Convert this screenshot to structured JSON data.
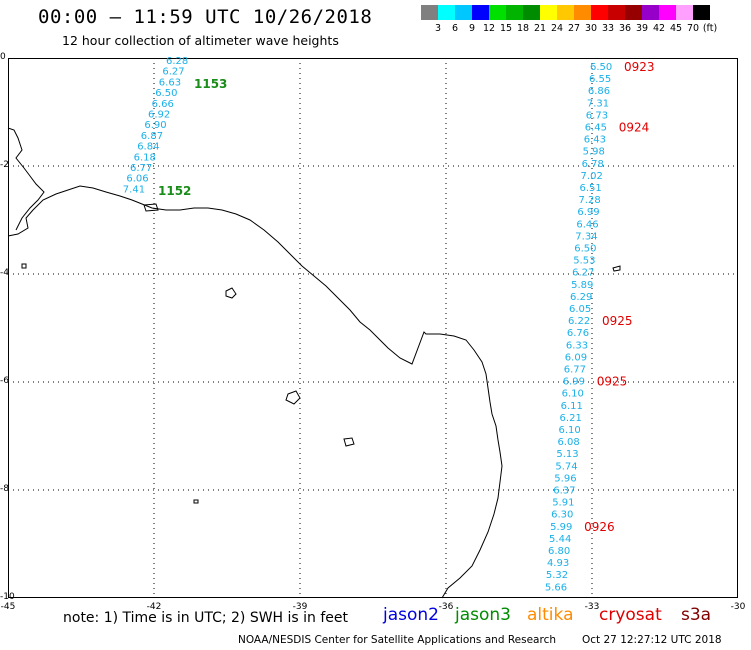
{
  "header": {
    "title": "00:00 – 11:59 UTC 10/26/2018",
    "subtitle": "12 hour collection of altimeter wave heights"
  },
  "scale": {
    "colors": [
      "#808080",
      "#00ffff",
      "#00c8ff",
      "#0000ff",
      "#00e000",
      "#00b400",
      "#008c00",
      "#ffff00",
      "#ffc800",
      "#ff8c00",
      "#ff0000",
      "#c80000",
      "#960000",
      "#9600c8",
      "#ff00ff",
      "#ffa0ff",
      "#000000"
    ],
    "labels": [
      "3",
      "6",
      "9",
      "12",
      "15",
      "18",
      "21",
      "24",
      "27",
      "30",
      "33",
      "36",
      "39",
      "42",
      "45",
      "70",
      "(ft)"
    ]
  },
  "axes": {
    "x_ticks": [
      "-45",
      "-42",
      "-39",
      "-36",
      "-33",
      "-30"
    ],
    "y_ticks": [
      "0",
      "-2",
      "-4",
      "-6",
      "-8",
      "-10"
    ]
  },
  "track_east": {
    "values": [
      "6.50",
      "6.55",
      "6.86",
      "7.31",
      "6.73",
      "6.45",
      "6.43",
      "5.98",
      "6.78",
      "7.02",
      "6.51",
      "7.28",
      "6.99",
      "6.46",
      "7.34",
      "6.50",
      "5.53",
      "6.27",
      "5.89",
      "6.29",
      "6.05",
      "6.22",
      "6.76",
      "6.33",
      "6.09",
      "6.77",
      "6.99",
      "6.10",
      "6.11",
      "6.21",
      "6.10",
      "6.08",
      "5.13",
      "5.74",
      "5.96",
      "6.37",
      "5.91",
      "6.30",
      "5.99",
      "5.44",
      "6.80",
      "4.93",
      "5.32",
      "5.66"
    ],
    "times": [
      "0923",
      "0924",
      "0925",
      "0925",
      "0926"
    ],
    "color": "#1ab0e8",
    "time_color": "#e00000"
  },
  "track_west": {
    "values": [
      "6.28",
      "6.27",
      "6.63",
      "6.50",
      "6.66",
      "6.92",
      "6.90",
      "6.87",
      "6.84",
      "6.18",
      "6.77",
      "6.06",
      "7.41"
    ],
    "times": [
      "1153",
      "1152"
    ],
    "color": "#1ab0e8",
    "time_color": "#1a8c1a"
  },
  "footer": {
    "note": "note: 1) Time is in UTC; 2) SWH is in feet",
    "missions": [
      {
        "name": "jason2",
        "color": "#0000e0"
      },
      {
        "name": "jason3",
        "color": "#008c00"
      },
      {
        "name": "altika",
        "color": "#ff8c00"
      },
      {
        "name": "cryosat",
        "color": "#e00000"
      },
      {
        "name": "s3a",
        "color": "#800000"
      }
    ],
    "credit": "NOAA/NESDIS Center for Satellite Applications and Research",
    "stamp": "Oct 27 12:27:12 UTC 2018"
  }
}
